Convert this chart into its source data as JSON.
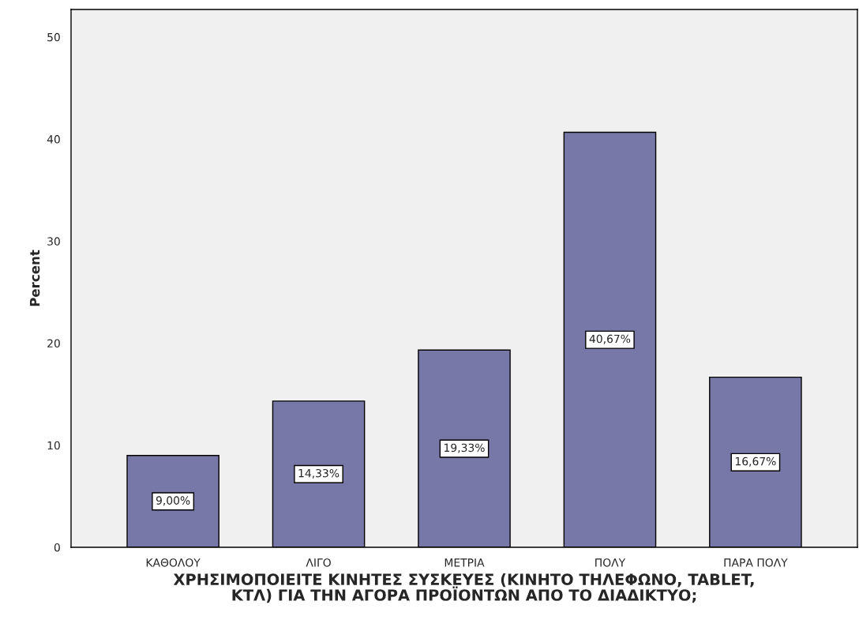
{
  "chart_data": {
    "type": "bar",
    "xlabel": "ΧΡΗΣΙΜΟΠΟΙΕΙΤΕ ΚΙΝΗΤΕΣ ΣΥΣΚΕΥΕΣ (ΚΙΝΗΤΟ ΤΗΛΕΦΩΝΟ, TABLET,\nΚΤΛ) ΓΙΑ ΤΗΝ ΑΓΟΡΑ ΠΡΟΪΟΝΤΩΝ ΑΠΟ ΤΟ ΔΙΑΔΙΚΤΥΟ;",
    "ylabel": "Percent",
    "categories": [
      "ΚΑΘΟΛΟΥ",
      "ΛΙΓΟ",
      "ΜΕΤΡΙΑ",
      "ΠΟΛΥ",
      "ΠΑΡΑ ΠΟΛΥ"
    ],
    "values": [
      9.0,
      14.33,
      19.33,
      40.67,
      16.67
    ],
    "value_labels": [
      "9,00%",
      "14,33%",
      "19,33%",
      "40,67%",
      "16,67%"
    ],
    "color": "#7878a8",
    "ylim": [
      0,
      52.7
    ],
    "yticks": [
      0,
      10,
      20,
      30,
      40,
      50
    ],
    "grid": false
  }
}
